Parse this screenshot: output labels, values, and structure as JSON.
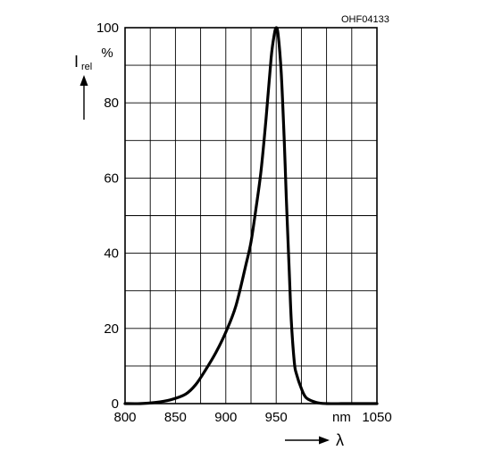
{
  "figure_code": "OHF04133",
  "chart_data": {
    "type": "line",
    "title": "",
    "xlabel": "λ",
    "x_unit": "nm",
    "ylabel_symbol": "I",
    "ylabel_subscript": "rel",
    "y_unit": "%",
    "xlim": [
      800,
      1050
    ],
    "ylim": [
      0,
      100
    ],
    "x_ticks": [
      800,
      850,
      900,
      950,
      1050
    ],
    "x_tick_labels": [
      "800",
      "850",
      "900",
      "950",
      "1050"
    ],
    "y_ticks": [
      0,
      20,
      40,
      60,
      80,
      100
    ],
    "y_tick_labels": [
      "0",
      "20",
      "40",
      "60",
      "80",
      "100"
    ],
    "x_grid_step": 25,
    "y_grid_step": 10,
    "grid": true,
    "legend": "none",
    "series": [
      {
        "x": [
          800,
          815,
          830,
          845,
          860,
          870,
          880,
          890,
          900,
          910,
          920,
          925,
          930,
          935,
          940,
          945,
          948,
          950,
          952,
          955,
          958,
          960,
          963,
          965,
          968,
          970,
          975,
          980,
          990,
          1000,
          1020,
          1050
        ],
        "values": [
          0,
          0,
          0.3,
          1,
          2.5,
          5,
          9,
          13.5,
          19,
          26,
          37,
          43,
          52,
          62,
          76,
          92,
          98,
          100,
          98,
          88,
          70,
          55,
          35,
          22,
          11,
          8,
          4,
          1.5,
          0.3,
          0,
          0,
          0
        ]
      }
    ]
  }
}
